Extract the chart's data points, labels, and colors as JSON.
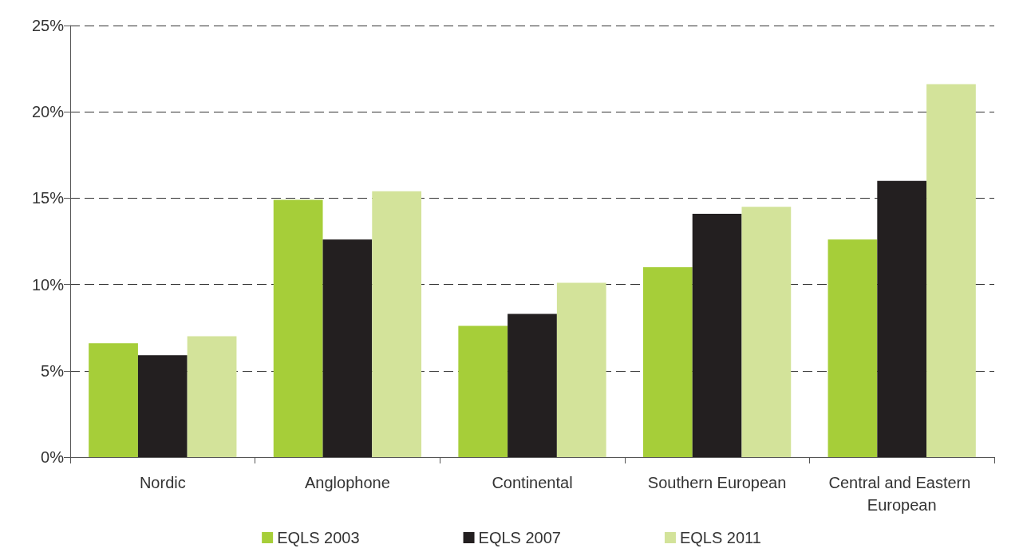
{
  "chart_data": {
    "type": "bar",
    "categories": [
      "Nordic",
      "Anglophone",
      "Continental",
      "Southern European",
      "Central and Eastern European"
    ],
    "series": [
      {
        "name": "EQLS 2003",
        "color": "#a6ce39",
        "values": [
          6.6,
          14.9,
          7.6,
          11.0,
          12.6
        ]
      },
      {
        "name": "EQLS 2007",
        "color": "#231f20",
        "values": [
          5.9,
          12.6,
          8.3,
          14.1,
          16.0
        ]
      },
      {
        "name": "EQLS 2011",
        "color": "#d3e39a",
        "values": [
          7.0,
          15.4,
          10.1,
          14.5,
          21.6
        ]
      }
    ],
    "ylim": [
      0,
      25
    ],
    "yticks": [
      {
        "value": 0,
        "label": "0%"
      },
      {
        "value": 5,
        "label": "5%"
      },
      {
        "value": 10,
        "label": "10%"
      },
      {
        "value": 15,
        "label": "15%"
      },
      {
        "value": 20,
        "label": "20%"
      },
      {
        "value": 25,
        "label": "25%"
      }
    ],
    "grid": "y",
    "legend": "bottom"
  }
}
